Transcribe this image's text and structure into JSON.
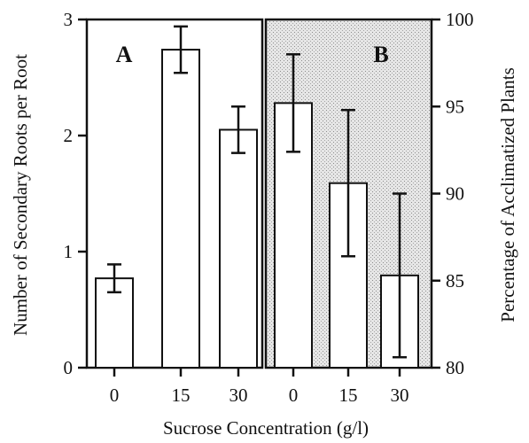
{
  "chart_data": [
    {
      "panel_label": "A",
      "type": "bar",
      "categories": [
        "0",
        "15",
        "30"
      ],
      "values": [
        0.77,
        2.74,
        2.05
      ],
      "error": [
        0.12,
        0.2,
        0.2
      ],
      "ylabel": "Number of Secondary Roots per Root",
      "ylim": [
        0,
        3
      ],
      "yticks": [
        "0",
        "1",
        "2",
        "3"
      ],
      "background": "#ffffff"
    },
    {
      "panel_label": "B",
      "type": "bar",
      "categories": [
        "0",
        "15",
        "30"
      ],
      "values": [
        95.2,
        90.6,
        85.3
      ],
      "error": [
        2.8,
        4.2,
        4.7
      ],
      "ylabel": "Percentage of Acclimatized Plants",
      "ylim": [
        80,
        100
      ],
      "yticks": [
        "80",
        "85",
        "90",
        "95",
        "100"
      ],
      "background": "stippled gray"
    }
  ],
  "xlabel": "Sucrose Concentration (g/l)"
}
